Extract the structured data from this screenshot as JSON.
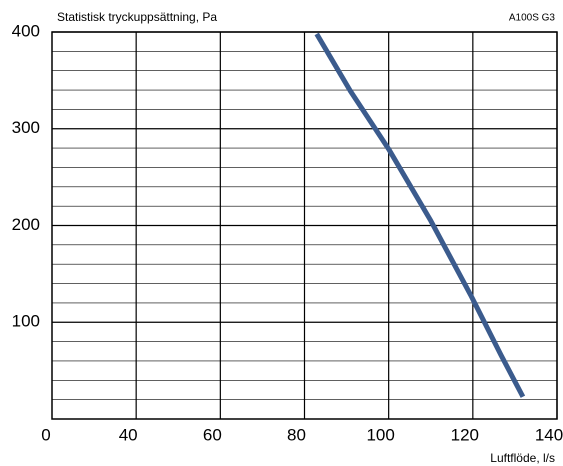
{
  "chart_data": {
    "type": "line",
    "title": "Statistisk tryckuppsättning, Pa",
    "subtitle": "A100S G3",
    "x_label": "Luftflöde, l/s",
    "x_origin_label": "0",
    "x": [
      82.9,
      90.9,
      100,
      110,
      119.5,
      126.7,
      131.9
    ],
    "series": [
      {
        "name": "A100S G3",
        "color": "#3b5b8d",
        "values": [
          398,
          339,
          279,
          205,
          128,
          66,
          23
        ]
      }
    ],
    "xlim": [
      20,
      140
    ],
    "xticks": [
      40,
      60,
      80,
      100,
      120,
      140
    ],
    "ylim": [
      0,
      400
    ],
    "yticks": [
      100,
      200,
      300,
      400
    ],
    "yminor": [
      20,
      40,
      60,
      80,
      120,
      140,
      160,
      180,
      220,
      240,
      260,
      280,
      320,
      340,
      360,
      380
    ],
    "grid": true
  }
}
